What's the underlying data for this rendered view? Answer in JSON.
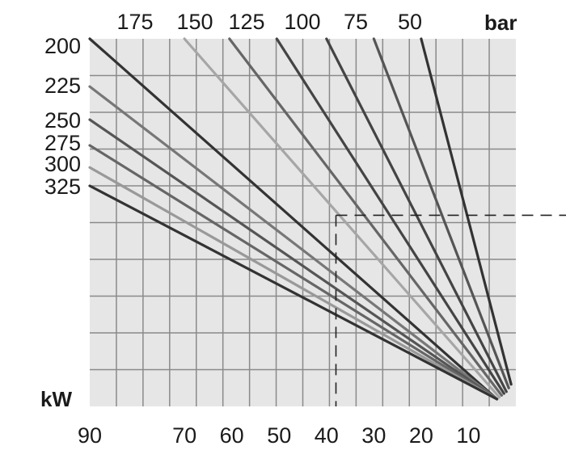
{
  "chart_data": {
    "type": "line",
    "title": "",
    "xlabel": "kW",
    "top_axis_label": "bar",
    "bottom_tick_labels": [
      "90",
      "70",
      "60",
      "50",
      "40",
      "30",
      "20",
      "10"
    ],
    "top_tick_labels": [
      "175",
      "150",
      "125",
      "100",
      "75",
      "50"
    ],
    "left_tick_labels": [
      "200",
      "225",
      "250",
      "275",
      "300",
      "325"
    ],
    "series": [
      {
        "label": "50",
        "color": "#333333",
        "points": [
          [
            20,
            1.0
          ],
          [
            1,
            0.06
          ]
        ]
      },
      {
        "label": "75",
        "color": "#555555",
        "points": [
          [
            30,
            1.0
          ],
          [
            1.5,
            0.05
          ]
        ]
      },
      {
        "label": "100",
        "color": "#444444",
        "points": [
          [
            40,
            1.0
          ],
          [
            2,
            0.04
          ]
        ]
      },
      {
        "label": "125",
        "color": "#444444",
        "points": [
          [
            50.5,
            1.0
          ],
          [
            2.5,
            0.035
          ]
        ]
      },
      {
        "label": "150",
        "color": "#666666",
        "points": [
          [
            60.5,
            1.0
          ],
          [
            3,
            0.03
          ]
        ]
      },
      {
        "label": "175",
        "color": "#a6a6a6",
        "points": [
          [
            70,
            1.0
          ],
          [
            3.5,
            0.025
          ]
        ]
      },
      {
        "label": "200",
        "color": "#333333",
        "points": [
          [
            90,
            1.0
          ],
          [
            4,
            0.02
          ]
        ]
      },
      {
        "label": "225",
        "color": "#777777",
        "points": [
          [
            90,
            0.87
          ],
          [
            4,
            0.02
          ]
        ]
      },
      {
        "label": "250",
        "color": "#555555",
        "points": [
          [
            90,
            0.78
          ],
          [
            4,
            0.02
          ]
        ]
      },
      {
        "label": "275",
        "color": "#666666",
        "points": [
          [
            90,
            0.71
          ],
          [
            4,
            0.02
          ]
        ]
      },
      {
        "label": "300",
        "color": "#999999",
        "points": [
          [
            90,
            0.65
          ],
          [
            4,
            0.02
          ]
        ]
      },
      {
        "label": "325",
        "color": "#333333",
        "points": [
          [
            90,
            0.6
          ],
          [
            4,
            0.02
          ]
        ]
      }
    ],
    "reference_point": {
      "x": 38,
      "y": 0.52
    },
    "grid": true,
    "colors": {
      "background": "#e6e6e6",
      "grid": "#8a8a8a",
      "guide": "#222222"
    }
  }
}
